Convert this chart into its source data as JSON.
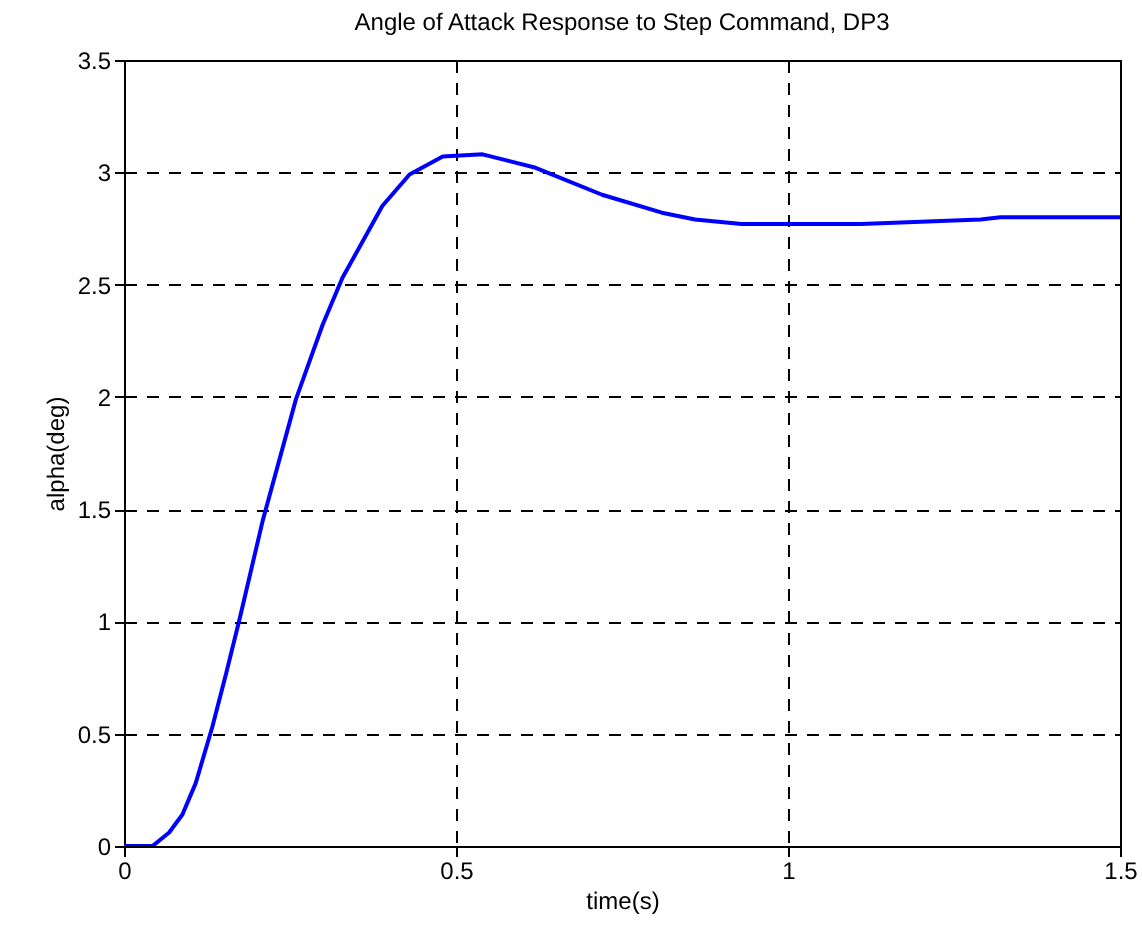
{
  "chart_data": {
    "type": "line",
    "title": "Angle of Attack Response to Step Command, DP3",
    "xlabel": "time(s)",
    "ylabel": "alpha(deg)",
    "xlim": [
      0,
      1.5
    ],
    "ylim": [
      0,
      3.5
    ],
    "xticks": [
      0,
      0.5,
      1,
      1.5
    ],
    "yticks": [
      0,
      0.5,
      1,
      1.5,
      2,
      2.5,
      3,
      3.5
    ],
    "grid": true,
    "line_style": "solid",
    "series": [
      {
        "color": "#0000ff",
        "x": [
          0,
          0.043,
          0.068,
          0.088,
          0.108,
          0.133,
          0.154,
          0.174,
          0.209,
          0.259,
          0.299,
          0.329,
          0.389,
          0.43,
          0.48,
          0.54,
          0.62,
          0.72,
          0.81,
          0.86,
          0.93,
          1.11,
          1.2,
          1.29,
          1.32,
          1.5
        ],
        "values": [
          0,
          0,
          0.06,
          0.14,
          0.28,
          0.53,
          0.77,
          1.01,
          1.45,
          1.99,
          2.32,
          2.53,
          2.85,
          2.99,
          3.07,
          3.08,
          3.02,
          2.9,
          2.82,
          2.79,
          2.77,
          2.77,
          2.78,
          2.79,
          2.8,
          2.8
        ]
      }
    ]
  }
}
